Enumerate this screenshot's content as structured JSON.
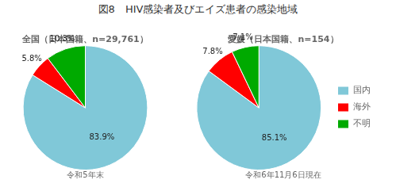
{
  "title": "図8　HIV感染者及びエイズ患者の感染地域",
  "chart_data": [
    {
      "type": "pie",
      "title": "全国（日本国籍、n=29,761）",
      "subtitle": "令和5年末",
      "categories": [
        "国内",
        "海外",
        "不明"
      ],
      "values": [
        83.9,
        5.8,
        10.3
      ],
      "value_labels": [
        "83.9%",
        "5.8%",
        "10.3%"
      ],
      "data_labels": true,
      "colors": [
        "#80C8D8",
        "#FF0000",
        "#00AA00"
      ]
    },
    {
      "type": "pie",
      "title": "愛媛（日本国籍、n=154）",
      "subtitle": "令和6年11月6日現在",
      "categories": [
        "国内",
        "海外",
        "不明"
      ],
      "values": [
        85.1,
        7.8,
        7.1
      ],
      "value_labels": [
        "85.1%",
        "7.8%",
        "7.1%"
      ],
      "data_labels": true,
      "colors": [
        "#80C8D8",
        "#FF0000",
        "#00AA00"
      ],
      "legend": "right"
    }
  ]
}
